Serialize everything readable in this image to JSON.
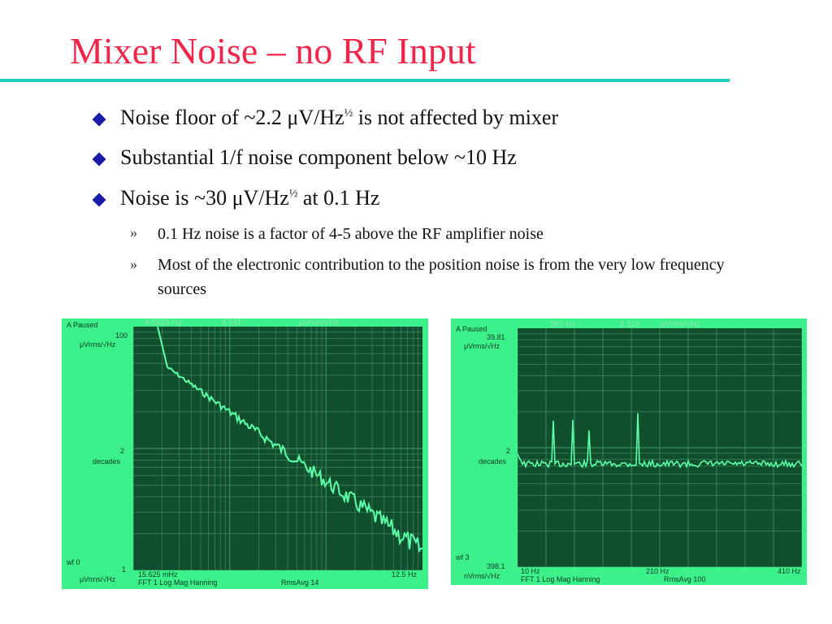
{
  "title": "Mixer Noise – no RF Input",
  "bullets": [
    {
      "pre": "Noise floor of ~2.2 μV/Hz",
      "sup": "½",
      "post": " is not affected by mixer"
    },
    {
      "text": "Substantial 1/f noise component below ~10 Hz"
    },
    {
      "pre": "Noise is ~30 μV/Hz",
      "sup": "½",
      "post": " at 0.1 Hz"
    }
  ],
  "sub_bullets": [
    {
      "marker": "»",
      "text": "0.1 Hz noise is a factor of 4-5 above the RF amplifier noise"
    },
    {
      "marker": "»",
      "text": "Most of the electronic contribution to the position noise is from the very low frequency sources"
    }
  ],
  "scope_left": {
    "status": "A Paused",
    "marker_freq": "9.5625 Hz",
    "marker_val": "3.341",
    "marker_unit": "μVrms/√Hz",
    "y_top": "100",
    "y_unit": "μVrms/√Hz",
    "y_mid": "2",
    "y_mid_unit": "decades",
    "wf": "wf 0",
    "y_bottom": "1",
    "y_bottom_unit": "μVrms/√Hz",
    "x_start": "15.625 mHz",
    "x_end": "12.5 Hz",
    "footer": "FFT 1 Log Mag Hanning",
    "avg": "RmsAvg   14"
  },
  "scope_right": {
    "status": "A Paused",
    "marker_freq": "391 Hz",
    "marker_val": "2.112",
    "marker_unit": "μVrms/√Hz",
    "y_top": "39.81",
    "y_unit": "μVrms/√Hz",
    "y_mid": "2",
    "y_mid_unit": "decades",
    "wf": "wf 3",
    "y_bottom": "398.1",
    "y_bottom_unit": "nVrms/√Hz",
    "x_start": "10 Hz",
    "x_mid": "210 Hz",
    "x_end": "410 Hz",
    "footer": "FFT 1 Log Mag Hanning",
    "avg": "RmsAvg   100"
  }
}
